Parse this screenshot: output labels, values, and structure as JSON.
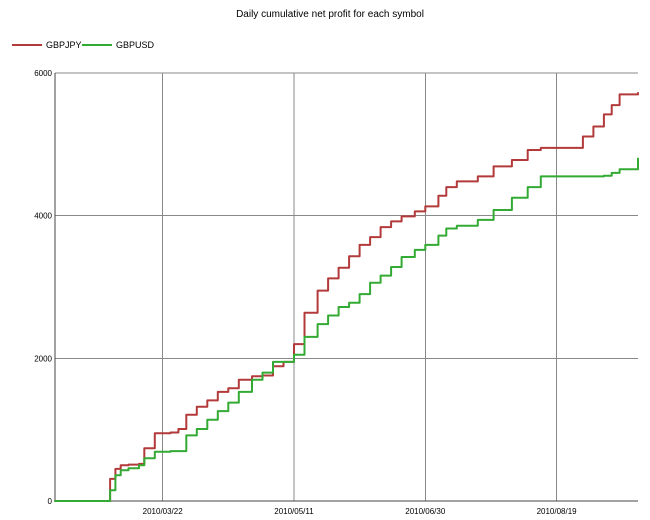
{
  "chart_data": {
    "type": "line",
    "title": "Daily cumulative net profit for each symbol",
    "xlabel": "",
    "ylabel": "",
    "xlim": [
      "2010-02-09",
      "2010-09-19"
    ],
    "ylim": [
      0,
      6000
    ],
    "x_ticks": [
      "2010/03/22",
      "2010/05/11",
      "2010/06/30",
      "2010/08/19"
    ],
    "y_ticks": [
      0,
      2000,
      4000,
      6000
    ],
    "y_tick_labels": [
      "0",
      "2000",
      "4000",
      "6000"
    ],
    "grid": true,
    "legend_position": "top-left",
    "series": [
      {
        "name": "GBPJPY",
        "color": "#b33a3a",
        "x": [
          "2010-02-09",
          "2010-02-16",
          "2010-02-21",
          "2010-02-26",
          "2010-03-02",
          "2010-03-04",
          "2010-03-06",
          "2010-03-09",
          "2010-03-13",
          "2010-03-15",
          "2010-03-19",
          "2010-03-25",
          "2010-03-28",
          "2010-03-31",
          "2010-04-04",
          "2010-04-08",
          "2010-04-12",
          "2010-04-16",
          "2010-04-20",
          "2010-04-25",
          "2010-04-29",
          "2010-05-03",
          "2010-05-07",
          "2010-05-11",
          "2010-05-15",
          "2010-05-20",
          "2010-05-24",
          "2010-05-28",
          "2010-06-01",
          "2010-06-05",
          "2010-06-09",
          "2010-06-13",
          "2010-06-17",
          "2010-06-21",
          "2010-06-26",
          "2010-06-30",
          "2010-07-05",
          "2010-07-08",
          "2010-07-12",
          "2010-07-20",
          "2010-07-26",
          "2010-08-02",
          "2010-08-08",
          "2010-08-13",
          "2010-08-25",
          "2010-08-29",
          "2010-09-02",
          "2010-09-06",
          "2010-09-09",
          "2010-09-12",
          "2010-09-19"
        ],
        "y": [
          0,
          0,
          0,
          0,
          310,
          450,
          500,
          510,
          520,
          740,
          950,
          960,
          1010,
          1210,
          1320,
          1410,
          1530,
          1580,
          1700,
          1750,
          1760,
          1890,
          1950,
          2200,
          2640,
          2950,
          3120,
          3270,
          3430,
          3590,
          3700,
          3840,
          3920,
          3990,
          4060,
          4130,
          4280,
          4400,
          4480,
          4550,
          4690,
          4780,
          4920,
          4950,
          4950,
          5110,
          5250,
          5420,
          5550,
          5700,
          5720
        ]
      },
      {
        "name": "GBPUSD",
        "color": "#33aa33",
        "x": [
          "2010-02-09",
          "2010-02-16",
          "2010-02-21",
          "2010-02-26",
          "2010-03-02",
          "2010-03-04",
          "2010-03-06",
          "2010-03-09",
          "2010-03-13",
          "2010-03-15",
          "2010-03-19",
          "2010-03-25",
          "2010-03-28",
          "2010-03-31",
          "2010-04-04",
          "2010-04-08",
          "2010-04-12",
          "2010-04-16",
          "2010-04-20",
          "2010-04-25",
          "2010-04-29",
          "2010-05-03",
          "2010-05-07",
          "2010-05-11",
          "2010-05-15",
          "2010-05-20",
          "2010-05-24",
          "2010-05-28",
          "2010-06-01",
          "2010-06-05",
          "2010-06-09",
          "2010-06-13",
          "2010-06-17",
          "2010-06-21",
          "2010-06-26",
          "2010-06-30",
          "2010-07-05",
          "2010-07-08",
          "2010-07-12",
          "2010-07-20",
          "2010-07-26",
          "2010-08-02",
          "2010-08-08",
          "2010-08-13",
          "2010-08-25",
          "2010-08-29",
          "2010-09-02",
          "2010-09-06",
          "2010-09-09",
          "2010-09-12",
          "2010-09-19"
        ],
        "y": [
          0,
          0,
          0,
          0,
          150,
          360,
          430,
          460,
          500,
          600,
          690,
          700,
          700,
          920,
          1010,
          1140,
          1260,
          1380,
          1530,
          1700,
          1800,
          1950,
          1950,
          2050,
          2300,
          2480,
          2600,
          2720,
          2780,
          2900,
          3060,
          3160,
          3280,
          3420,
          3520,
          3590,
          3720,
          3820,
          3860,
          3940,
          4080,
          4250,
          4400,
          4550,
          4550,
          4550,
          4550,
          4560,
          4600,
          4650,
          4800
        ]
      }
    ]
  }
}
